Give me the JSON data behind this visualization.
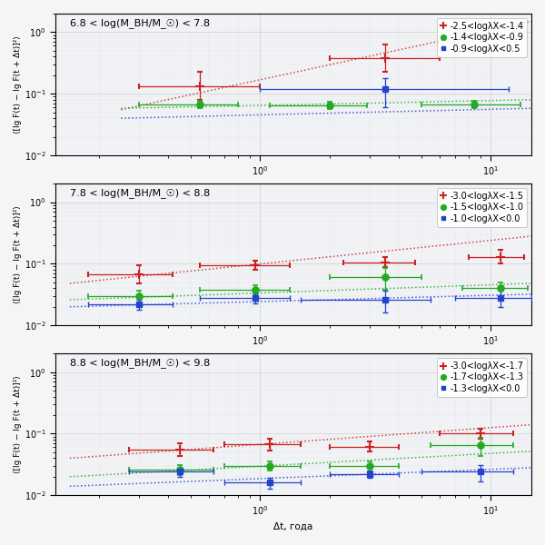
{
  "panels": [
    {
      "title": "6.8 < log(M$_{BH}$/M$_{☉}$) < 7.8",
      "title_plain": "6.8 < log(M_BH/M_☉) < 7.8",
      "legend": [
        "-2.5<logλX<-1.4",
        "-1.4<logλX<-0.9",
        "-0.9<logλX<0.5"
      ],
      "series": [
        {
          "color": "#cc2222",
          "x": [
            0.55,
            3.5
          ],
          "y": [
            0.13,
            0.38
          ],
          "xerr_lo": [
            0.25,
            1.5
          ],
          "xerr_hi": [
            0.45,
            2.5
          ],
          "yerr_lo": [
            0.05,
            0.15
          ],
          "yerr_hi": [
            0.1,
            0.25
          ],
          "fit_x": [
            0.25,
            15
          ],
          "fit_y": [
            0.055,
            1.5
          ]
        },
        {
          "color": "#22aa22",
          "x": [
            0.55,
            2.0,
            8.5
          ],
          "y": [
            0.068,
            0.065,
            0.068
          ],
          "xerr_lo": [
            0.25,
            0.9,
            3.5
          ],
          "xerr_hi": [
            0.25,
            0.9,
            5.0
          ],
          "yerr_lo": [
            0.01,
            0.008,
            0.01
          ],
          "yerr_hi": [
            0.01,
            0.008,
            0.01
          ],
          "fit_x": [
            0.25,
            15
          ],
          "fit_y": [
            0.058,
            0.08
          ]
        },
        {
          "color": "#2244cc",
          "x": [
            3.5
          ],
          "y": [
            0.12
          ],
          "xerr_lo": [
            2.5
          ],
          "xerr_hi": [
            8.5
          ],
          "yerr_lo": [
            0.06
          ],
          "yerr_hi": [
            0.06
          ],
          "fit_x": [
            0.25,
            15
          ],
          "fit_y": [
            0.04,
            0.058
          ]
        }
      ]
    },
    {
      "title": "7.8 < log(M$_{BH}$/M$_{☉}$) < 8.8",
      "title_plain": "7.8 < log(M_BH/M_☉) < 8.8",
      "legend": [
        "-3.0<logλX<-1.5",
        "-1.5<logλX<-1.0",
        "-1.0<logλX<0.0"
      ],
      "series": [
        {
          "color": "#cc2222",
          "x": [
            0.3,
            0.95,
            3.5,
            11.0
          ],
          "y": [
            0.068,
            0.095,
            0.105,
            0.13
          ],
          "xerr_lo": [
            0.12,
            0.4,
            1.2,
            3.0
          ],
          "xerr_hi": [
            0.12,
            0.4,
            1.2,
            3.0
          ],
          "yerr_lo": [
            0.02,
            0.015,
            0.018,
            0.03
          ],
          "yerr_hi": [
            0.028,
            0.018,
            0.022,
            0.04
          ],
          "fit_x": [
            0.15,
            15
          ],
          "fit_y": [
            0.048,
            0.28
          ]
        },
        {
          "color": "#22aa22",
          "x": [
            0.3,
            0.95,
            3.5,
            11.0
          ],
          "y": [
            0.03,
            0.038,
            0.06,
            0.04
          ],
          "xerr_lo": [
            0.12,
            0.4,
            1.5,
            3.5
          ],
          "xerr_hi": [
            0.12,
            0.4,
            1.5,
            3.5
          ],
          "yerr_lo": [
            0.007,
            0.007,
            0.022,
            0.01
          ],
          "yerr_hi": [
            0.007,
            0.007,
            0.025,
            0.01
          ],
          "fit_x": [
            0.15,
            15
          ],
          "fit_y": [
            0.026,
            0.048
          ]
        },
        {
          "color": "#2244cc",
          "x": [
            0.3,
            0.95,
            3.5,
            11.0
          ],
          "y": [
            0.022,
            0.028,
            0.026,
            0.028
          ],
          "xerr_lo": [
            0.12,
            0.4,
            2.0,
            4.0
          ],
          "xerr_hi": [
            0.12,
            0.4,
            2.0,
            4.0
          ],
          "yerr_lo": [
            0.004,
            0.005,
            0.01,
            0.008
          ],
          "yerr_hi": [
            0.004,
            0.005,
            0.01,
            0.008
          ],
          "fit_x": [
            0.15,
            15
          ],
          "fit_y": [
            0.02,
            0.032
          ]
        }
      ]
    },
    {
      "title": "8.8 < log(M$_{BH}$/M$_{☉}$) < 9.8",
      "title_plain": "8.8 < log(M_BH/M_☉) < 9.8",
      "legend": [
        "-3.0<logλX<-1.7",
        "-1.7<logλX<-1.3",
        "-1.3<logλX<0.0"
      ],
      "series": [
        {
          "color": "#cc2222",
          "x": [
            0.45,
            1.1,
            3.0,
            9.0
          ],
          "y": [
            0.055,
            0.068,
            0.062,
            0.1
          ],
          "xerr_lo": [
            0.18,
            0.4,
            1.0,
            3.0
          ],
          "xerr_hi": [
            0.18,
            0.4,
            1.0,
            3.5
          ],
          "yerr_lo": [
            0.012,
            0.014,
            0.01,
            0.016
          ],
          "yerr_hi": [
            0.015,
            0.016,
            0.012,
            0.02
          ],
          "fit_x": [
            0.15,
            15
          ],
          "fit_y": [
            0.04,
            0.14
          ]
        },
        {
          "color": "#22aa22",
          "x": [
            0.45,
            1.1,
            3.0,
            9.0
          ],
          "y": [
            0.026,
            0.03,
            0.03,
            0.065
          ],
          "xerr_lo": [
            0.18,
            0.4,
            1.0,
            3.5
          ],
          "xerr_hi": [
            0.18,
            0.4,
            1.0,
            3.5
          ],
          "yerr_lo": [
            0.005,
            0.005,
            0.006,
            0.022
          ],
          "yerr_hi": [
            0.005,
            0.005,
            0.006,
            0.022
          ],
          "fit_x": [
            0.15,
            15
          ],
          "fit_y": [
            0.02,
            0.052
          ]
        },
        {
          "color": "#2244cc",
          "x": [
            0.45,
            1.1,
            3.0,
            9.0
          ],
          "y": [
            0.024,
            0.016,
            0.022,
            0.024
          ],
          "xerr_lo": [
            0.18,
            0.4,
            1.0,
            4.0
          ],
          "xerr_hi": [
            0.18,
            0.4,
            1.0,
            3.5
          ],
          "yerr_lo": [
            0.004,
            0.003,
            0.003,
            0.007
          ],
          "yerr_hi": [
            0.004,
            0.003,
            0.003,
            0.007
          ],
          "fit_x": [
            0.15,
            15
          ],
          "fit_y": [
            0.014,
            0.028
          ]
        }
      ]
    }
  ],
  "xlabel": "Δt, года",
  "ylabel": "⟨[lg F(t) − lg F(t + Δt)]²⟩",
  "xlim": [
    0.13,
    15
  ],
  "ylim": [
    0.01,
    2.0
  ],
  "background_color": "#f5f5f5",
  "plot_bg_color": "#f0f0f0",
  "grid_color": "#bbbbbb",
  "capsize": 2,
  "legend_fontsize": 7,
  "title_fontsize": 8,
  "axis_fontsize": 7.5,
  "tick_fontsize": 7
}
